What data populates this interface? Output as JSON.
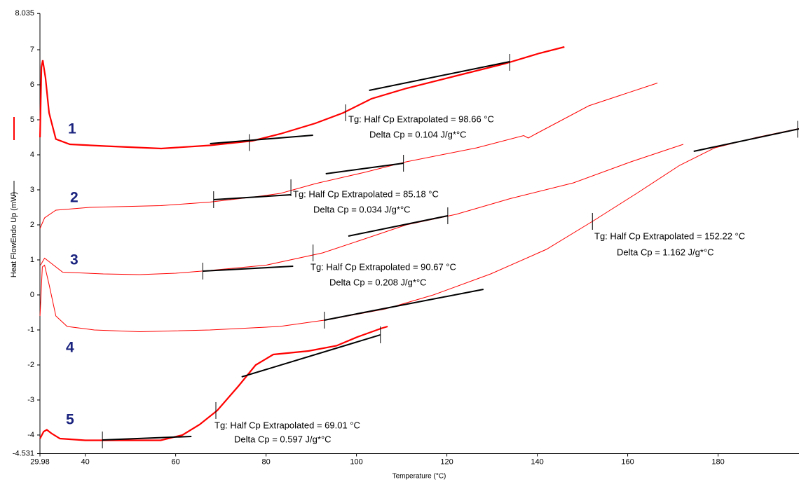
{
  "chart_data": {
    "type": "line",
    "x_label": "Temperature (°C)",
    "y_label": "Heat FlowEndo Up (mW)",
    "xlim": [
      29.98,
      197.9
    ],
    "ylim": [
      -4.531,
      8.035
    ],
    "xticks": [
      29.98,
      40,
      60,
      80,
      100,
      120,
      140,
      160,
      180
    ],
    "yticks": [
      -4.531,
      -4,
      -3,
      -2,
      -1,
      0,
      1,
      2,
      3,
      4,
      5,
      6,
      7,
      8.035
    ],
    "series": [
      {
        "name": "1",
        "color": "#ff0000",
        "line_width": 2.2,
        "x": [
          30.0,
          30.3,
          30.6,
          31.2,
          32,
          33.5,
          36.6,
          44.4,
          56.8,
          67.6,
          77,
          83.2,
          90.9,
          97.1,
          103.3,
          111.1,
          121.9,
          132.8,
          140.5,
          146
        ],
        "values": [
          4.5,
          6.5,
          6.7,
          6.2,
          5.2,
          4.45,
          4.3,
          4.25,
          4.18,
          4.27,
          4.4,
          4.6,
          4.9,
          5.2,
          5.6,
          5.9,
          6.25,
          6.6,
          6.9,
          7.08
        ],
        "tangents": [
          {
            "x": [
              67.6,
              90.4
            ],
            "y": [
              4.32,
              4.56
            ]
          },
          {
            "x": [
              102.8,
              133.9
            ],
            "y": [
              5.84,
              6.66
            ]
          }
        ],
        "markers": [
          {
            "x": 76.3,
            "y": 4.35
          },
          {
            "x": 97.6,
            "y": 5.2
          },
          {
            "x": 133.9,
            "y": 6.64
          }
        ],
        "annotation": [
          "Tg: Half Cp Extrapolated = 98.66 °C",
          "Delta Cp = 0.104 J/g*°C"
        ]
      },
      {
        "name": "2",
        "color": "#ff0000",
        "line_width": 1,
        "x": [
          30,
          31,
          33.5,
          41,
          56.7,
          67.5,
          77.5,
          83.2,
          91,
          101.8,
          111,
          126.6,
          137,
          138,
          140,
          151.4,
          166.6
        ],
        "values": [
          1.9,
          2.2,
          2.42,
          2.5,
          2.55,
          2.65,
          2.8,
          2.9,
          3.18,
          3.5,
          3.8,
          4.2,
          4.55,
          4.48,
          4.62,
          5.4,
          6.05
        ],
        "tangents": [
          {
            "x": [
              68.4,
              85.5
            ],
            "y": [
              2.72,
              2.86
            ]
          },
          {
            "x": [
              93.2,
              110.4
            ],
            "y": [
              3.46,
              3.76
            ]
          }
        ],
        "markers": [
          {
            "x": 68.4,
            "y": 2.72
          },
          {
            "x": 85.5,
            "y": 3.06
          },
          {
            "x": 110.4,
            "y": 3.76
          }
        ],
        "annotation": [
          "Tg: Half Cp Extrapolated = 85.18 °C",
          "Delta Cp = 0.034 J/g*°C"
        ]
      },
      {
        "name": "3",
        "color": "#ff0000",
        "line_width": 1,
        "x": [
          30.1,
          31,
          32.5,
          35,
          44,
          52,
          60,
          67.6,
          80,
          92.5,
          101.8,
          111,
          122,
          134,
          148,
          160.7,
          172.3
        ],
        "values": [
          0.85,
          1.05,
          0.9,
          0.65,
          0.6,
          0.58,
          0.62,
          0.7,
          0.85,
          1.2,
          1.6,
          2.0,
          2.3,
          2.75,
          3.2,
          3.8,
          4.3
        ],
        "tangents": [
          {
            "x": [
              66,
              86
            ],
            "y": [
              0.68,
              0.82
            ]
          },
          {
            "x": [
              98.2,
              120.2
            ],
            "y": [
              1.68,
              2.26
            ]
          }
        ],
        "markers": [
          {
            "x": 66,
            "y": 0.68
          },
          {
            "x": 90.4,
            "y": 1.2
          },
          {
            "x": 120.2,
            "y": 2.26
          }
        ],
        "annotation": [
          "Tg: Half Cp Extrapolated = 90.67 °C",
          "Delta Cp = 0.208 J/g*°C"
        ]
      },
      {
        "name": "4",
        "color": "#ff0000",
        "line_width": 1,
        "x": [
          30,
          30.5,
          31,
          32,
          33.5,
          36,
          42,
          52,
          67.6,
          83,
          94,
          106.4,
          117,
          129.7,
          142,
          152.2,
          162,
          171.5,
          179.3,
          188.6,
          197.9
        ],
        "values": [
          -0.6,
          0.8,
          0.85,
          0.3,
          -0.6,
          -0.9,
          -1.0,
          -1.05,
          -1.0,
          -0.9,
          -0.7,
          -0.4,
          0,
          0.6,
          1.3,
          2.1,
          2.9,
          3.7,
          4.2,
          4.5,
          4.75
        ],
        "tangents": [
          {
            "x": [
              92.9,
              128.1
            ],
            "y": [
              -0.72,
              0.16
            ]
          },
          {
            "x": [
              174.6,
              197.9
            ],
            "y": [
              4.1,
              4.74
            ]
          }
        ],
        "markers": [
          {
            "x": 92.9,
            "y": -0.72
          },
          {
            "x": 152.2,
            "y": 2.1
          },
          {
            "x": 197.6,
            "y": 4.73
          }
        ],
        "annotation": [
          "Tg: Half Cp Extrapolated = 152.22 °C",
          "Delta Cp = 1.162 J/g*°C"
        ]
      },
      {
        "name": "5",
        "color": "#ff0000",
        "line_width": 2.2,
        "x": [
          30,
          30.8,
          31.5,
          32.5,
          34.4,
          40,
          56.7,
          61.5,
          65.3,
          69.2,
          73.9,
          77.7,
          81.6,
          89.4,
          95.6,
          100.2,
          105.6,
          106.9
        ],
        "values": [
          -4.1,
          -3.9,
          -3.85,
          -3.95,
          -4.1,
          -4.15,
          -4.15,
          -4.0,
          -3.7,
          -3.3,
          -2.6,
          -2.0,
          -1.7,
          -1.6,
          -1.45,
          -1.2,
          -0.95,
          -0.9
        ],
        "tangents": [
          {
            "x": [
              43.8,
              63.5
            ],
            "y": [
              -4.14,
              -4.04
            ]
          },
          {
            "x": [
              74.6,
              105.3
            ],
            "y": [
              -2.34,
              -1.14
            ]
          }
        ],
        "markers": [
          {
            "x": 43.8,
            "y": -4.14
          },
          {
            "x": 68.9,
            "y": -3.3
          },
          {
            "x": 105.3,
            "y": -1.14
          }
        ],
        "annotation": [
          "Tg: Half Cp Extrapolated = 69.01 °C",
          "Delta Cp = 0.597 J/g*°C"
        ]
      }
    ]
  }
}
